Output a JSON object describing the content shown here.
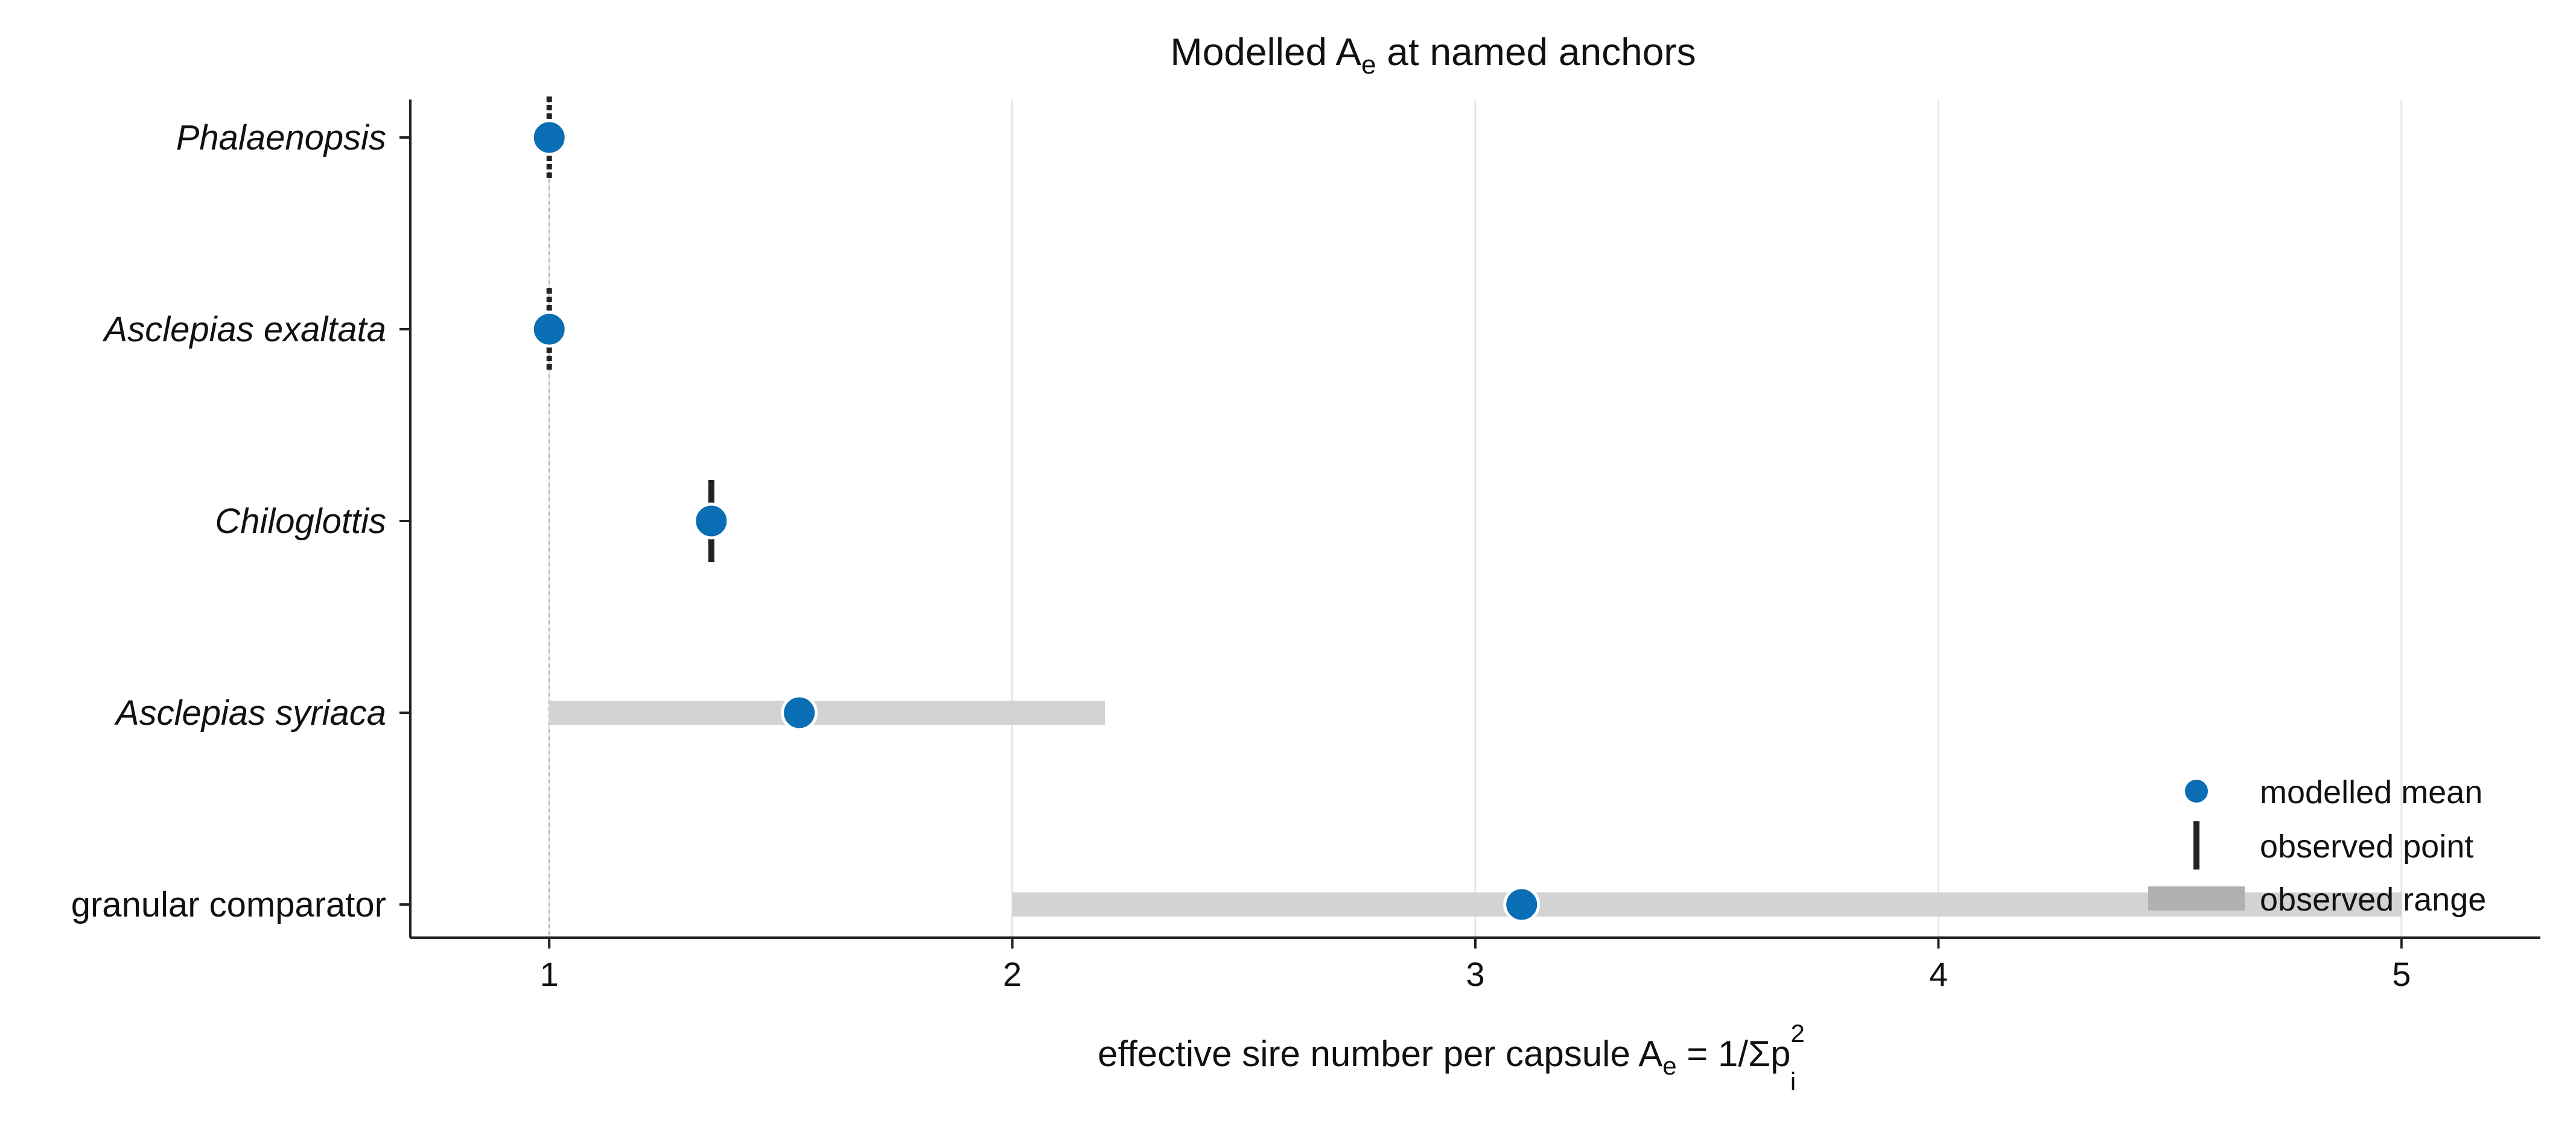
{
  "chart_data": {
    "type": "dot-range",
    "title": {
      "main": "Modelled A",
      "sub": "e",
      "rest": " at named anchors"
    },
    "xlabel": {
      "main": "effective sire number per capsule  A",
      "sub": "e",
      "mid": " = 1/Σp",
      "sup": "2",
      "sub2": "i"
    },
    "ylabel": "",
    "xlim": [
      0.7,
      5.3
    ],
    "xticks": [
      1,
      2,
      3,
      4,
      5
    ],
    "grid": "x",
    "reference_line_x": 1,
    "categories": [
      "Phalaenopsis",
      "Asclepias exaltata",
      "Chiloglottis",
      "Asclepias syriaca",
      "granular comparator"
    ],
    "italic": [
      true,
      true,
      true,
      true,
      false
    ],
    "modelled_mean": [
      1.0,
      1.0,
      1.35,
      1.54,
      3.1
    ],
    "observed_point": [
      1.0,
      1.0,
      1.35,
      null,
      null
    ],
    "observed_range": [
      null,
      null,
      null,
      [
        1.0,
        2.2
      ],
      [
        2.0,
        5.0
      ]
    ],
    "legend": {
      "position": "lower-right",
      "entries": [
        "modelled mean",
        "observed point",
        "observed range"
      ]
    },
    "colors": {
      "mean": "#0a6eb4",
      "point": "#222222",
      "range": "#d3d3d3",
      "grid": "#e6e6e6",
      "axis": "#222222"
    }
  }
}
